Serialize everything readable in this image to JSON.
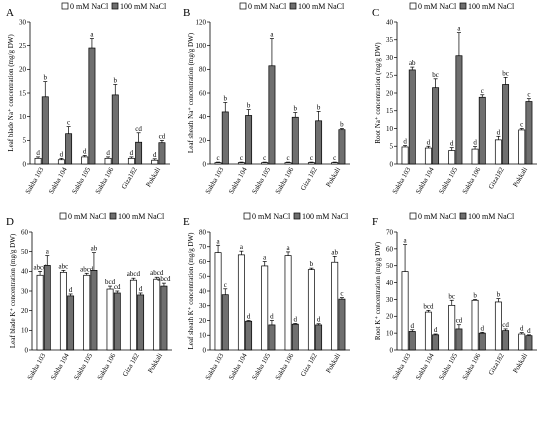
{
  "legend": {
    "control": "0 mM NaCl",
    "salt": "100 mM NaCl"
  },
  "colors": {
    "control": "#ffffff",
    "salt": "#6f6f6f",
    "axis": "#000000"
  },
  "chart_data": [
    {
      "panel": "A",
      "type": "bar",
      "ylabel": "Leaf blade Na⁺ concentration (mg/g DW)",
      "ylim": [
        0,
        30
      ],
      "yticks": [
        0,
        5,
        10,
        15,
        20,
        25,
        30
      ],
      "categories": [
        "Sakha 103",
        "Sakha 104",
        "Sakha 105",
        "Sakha 106",
        "Giza182",
        "Pokkali"
      ],
      "series": [
        {
          "name": "0 mM NaCl",
          "values": [
            1.2,
            0.9,
            1.5,
            1.2,
            1.2,
            0.8
          ],
          "errors": [
            0.3,
            0.3,
            0.3,
            0.3,
            0.3,
            0.3
          ],
          "labels": [
            "d",
            "d",
            "d",
            "d",
            "d",
            "d"
          ]
        },
        {
          "name": "100 mM NaCl",
          "values": [
            14.2,
            6.4,
            24.5,
            14.6,
            4.6,
            4.5
          ],
          "errors": [
            3.2,
            1.5,
            2.0,
            2.2,
            2.0,
            0.5
          ],
          "labels": [
            "b",
            "c",
            "a",
            "b",
            "cd",
            "cd"
          ]
        }
      ]
    },
    {
      "panel": "B",
      "type": "bar",
      "ylabel": "Leaf sheath Na⁺ concentration (mg/g DW)",
      "ylim": [
        0,
        120
      ],
      "yticks": [
        0,
        20,
        40,
        60,
        80,
        100,
        120
      ],
      "categories": [
        "Sakha 103",
        "Sakha 104",
        "Sakha 105",
        "Sakha 106",
        "Giza 182",
        "Pokkali"
      ],
      "series": [
        {
          "name": "0 mM NaCl",
          "values": [
            1.2,
            1.2,
            1.2,
            1.2,
            1.2,
            1.2
          ],
          "errors": [
            0.4,
            0.4,
            0.4,
            0.4,
            0.4,
            0.4
          ],
          "labels": [
            "c",
            "c",
            "c",
            "c",
            "c",
            "c"
          ]
        },
        {
          "name": "100 mM NaCl",
          "values": [
            44,
            41,
            83,
            39.5,
            36.5,
            29
          ],
          "errors": [
            8,
            5,
            23,
            4,
            8,
            1
          ],
          "labels": [
            "b",
            "b",
            "a",
            "b",
            "b",
            "b"
          ]
        }
      ]
    },
    {
      "panel": "C",
      "type": "bar",
      "ylabel": "Root Na⁺ concentration (mg/g DW)",
      "ylim": [
        0,
        40
      ],
      "yticks": [
        0,
        5,
        10,
        15,
        20,
        25,
        30,
        35,
        40
      ],
      "categories": [
        "Sakha 103",
        "Sakha 104",
        "Sakha 105",
        "Sakha 106",
        "Giza182",
        "Pokkali"
      ],
      "series": [
        {
          "name": "0 mM NaCl",
          "values": [
            4.8,
            4.5,
            3.8,
            4.2,
            6.8,
            9.6
          ],
          "errors": [
            0.4,
            0.5,
            0.8,
            0.7,
            1.0,
            0.4
          ],
          "labels": [
            "d",
            "d",
            "d",
            "d",
            "d",
            "c"
          ]
        },
        {
          "name": "100 mM NaCl",
          "values": [
            26.5,
            21.5,
            30.5,
            18.8,
            22.4,
            17.6
          ],
          "errors": [
            0.8,
            2.5,
            6.5,
            0.7,
            2.0,
            0.8
          ],
          "labels": [
            "ab",
            "bc",
            "a",
            "c",
            "bc",
            "c"
          ]
        }
      ]
    },
    {
      "panel": "D",
      "type": "bar",
      "ylabel": "Leaf blade K⁺ concentration (mg/g DW)",
      "ylim": [
        0,
        60
      ],
      "yticks": [
        0,
        10,
        20,
        30,
        40,
        50,
        60
      ],
      "categories": [
        "Sakha 103",
        "Sakha 104",
        "Sakha 105",
        "Sakha 106",
        "Giza 182",
        "Pokkali"
      ],
      "series": [
        {
          "name": "0 mM NaCl",
          "values": [
            38,
            39.5,
            38,
            31,
            35.5,
            36
          ],
          "errors": [
            2,
            1,
            1,
            1.5,
            1,
            1
          ],
          "labels": [
            "abcd",
            "abc",
            "abcd",
            "bcd",
            "abcd",
            "abcd"
          ]
        },
        {
          "name": "100 mM NaCl",
          "values": [
            43,
            27.5,
            40.5,
            29,
            28,
            32.5
          ],
          "errors": [
            5,
            1,
            9,
            1,
            1,
            1.5
          ],
          "labels": [
            "a",
            "d",
            "ab",
            "cd",
            "d",
            "abcd"
          ]
        }
      ]
    },
    {
      "panel": "E",
      "type": "bar",
      "ylabel": "Leaf sheath K⁺ concentration (mg/g DW)",
      "ylim": [
        0,
        80
      ],
      "yticks": [
        0,
        10,
        20,
        30,
        40,
        50,
        60,
        70,
        80
      ],
      "categories": [
        "Sakha 103",
        "Sakha 104",
        "Sakha 105",
        "Sakha 106",
        "Giza 182",
        "Pokkali"
      ],
      "series": [
        {
          "name": "0 mM NaCl",
          "values": [
            66,
            64.5,
            57,
            64,
            54.5,
            59.5
          ],
          "errors": [
            5,
            2.5,
            3,
            2.5,
            1,
            4
          ],
          "labels": [
            "a",
            "a",
            "a",
            "a",
            "b",
            "ab"
          ]
        },
        {
          "name": "100 mM NaCl",
          "values": [
            37.5,
            19.5,
            17,
            17.5,
            17,
            34.5
          ],
          "errors": [
            4,
            0.5,
            3,
            0.5,
            0.8,
            1
          ],
          "labels": [
            "c",
            "d",
            "d",
            "d",
            "d",
            "c"
          ]
        }
      ]
    },
    {
      "panel": "F",
      "type": "bar",
      "ylabel": "Root K⁺ concentration (mg/g DW)",
      "ylim": [
        0,
        70
      ],
      "yticks": [
        0,
        10,
        20,
        30,
        40,
        50,
        60,
        70
      ],
      "categories": [
        "Sakha 103",
        "Sakha 104",
        "Sakha 105",
        "Sakha 106",
        "Giza182",
        "Pokkali"
      ],
      "series": [
        {
          "name": "0 mM NaCl",
          "values": [
            46.5,
            22.5,
            26.5,
            29.5,
            28.5,
            9.5
          ],
          "errors": [
            16,
            1,
            3,
            0.5,
            2,
            0.8
          ],
          "labels": [
            "a",
            "bcd",
            "bc",
            "b",
            "b",
            "d"
          ]
        },
        {
          "name": "100 mM NaCl",
          "values": [
            11,
            9,
            12.5,
            10,
            11.5,
            8.5
          ],
          "errors": [
            1,
            0.5,
            2.5,
            0.5,
            1,
            0.5
          ],
          "labels": [
            "d",
            "d",
            "cd",
            "d",
            "cd",
            "d"
          ]
        }
      ]
    }
  ]
}
